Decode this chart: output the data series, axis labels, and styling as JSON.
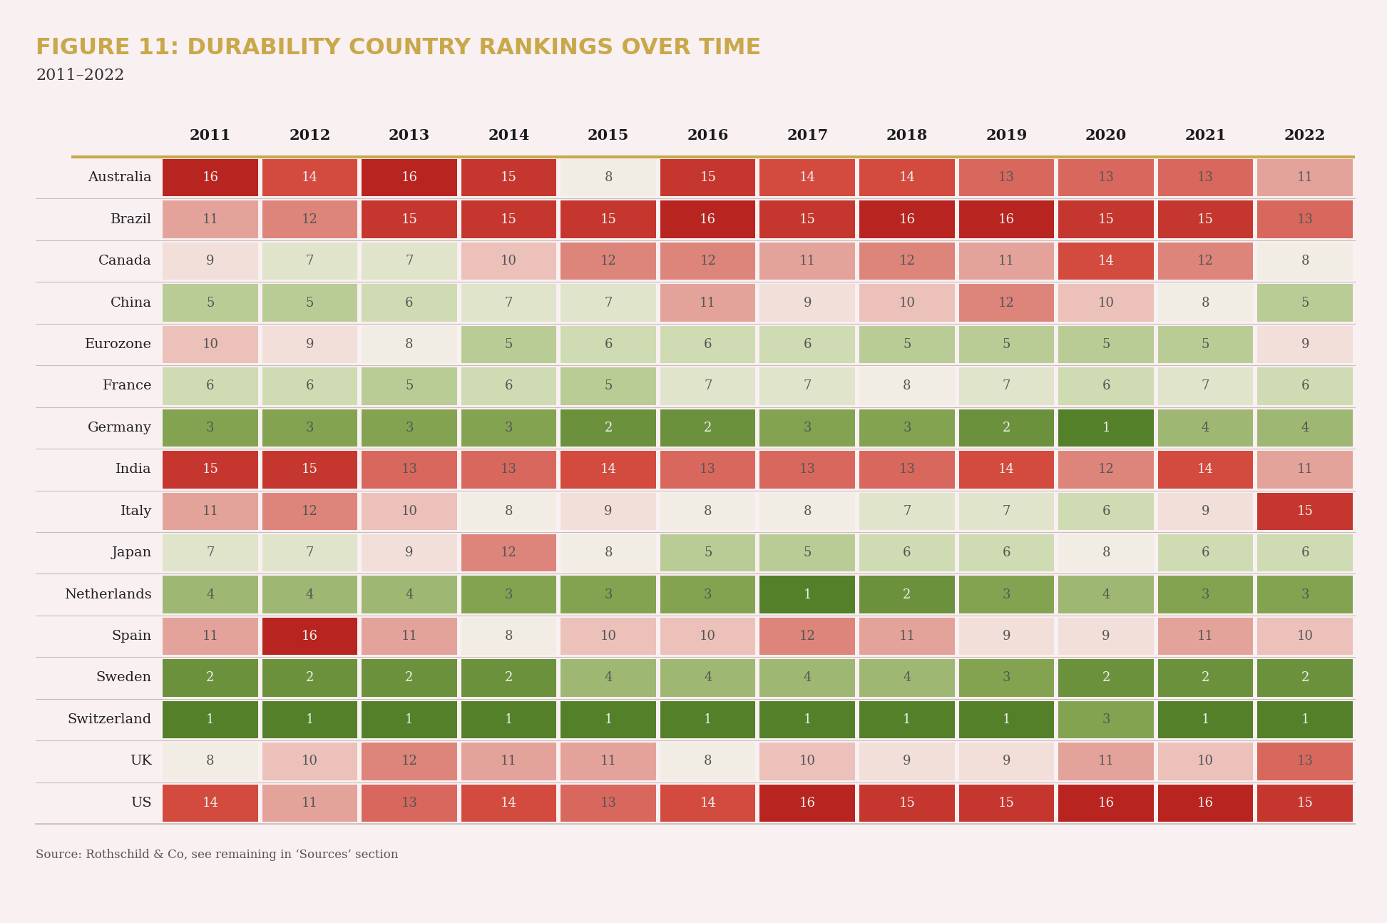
{
  "title": "FIGURE 11: DURABILITY COUNTRY RANKINGS OVER TIME",
  "subtitle": "2011–2022",
  "source": "Source: Rothschild & Co, see remaining in ‘Sources’ section",
  "years": [
    2011,
    2012,
    2013,
    2014,
    2015,
    2016,
    2017,
    2018,
    2019,
    2020,
    2021,
    2022
  ],
  "countries": [
    "Australia",
    "Brazil",
    "Canada",
    "China",
    "Eurozone",
    "France",
    "Germany",
    "India",
    "Italy",
    "Japan",
    "Netherlands",
    "Spain",
    "Sweden",
    "Switzerland",
    "UK",
    "US"
  ],
  "data": {
    "Australia": [
      16,
      14,
      16,
      15,
      8,
      15,
      14,
      14,
      13,
      13,
      13,
      11
    ],
    "Brazil": [
      11,
      12,
      15,
      15,
      15,
      16,
      15,
      16,
      16,
      15,
      15,
      13
    ],
    "Canada": [
      9,
      7,
      7,
      10,
      12,
      12,
      11,
      12,
      11,
      14,
      12,
      8
    ],
    "China": [
      5,
      5,
      6,
      7,
      7,
      11,
      9,
      10,
      12,
      10,
      8,
      5
    ],
    "Eurozone": [
      10,
      9,
      8,
      5,
      6,
      6,
      6,
      5,
      5,
      5,
      5,
      9
    ],
    "France": [
      6,
      6,
      5,
      6,
      5,
      7,
      7,
      8,
      7,
      6,
      7,
      6
    ],
    "Germany": [
      3,
      3,
      3,
      3,
      2,
      2,
      3,
      3,
      2,
      1,
      4,
      4
    ],
    "India": [
      15,
      15,
      13,
      13,
      14,
      13,
      13,
      13,
      14,
      12,
      14,
      11
    ],
    "Italy": [
      11,
      12,
      10,
      8,
      9,
      8,
      8,
      7,
      7,
      6,
      9,
      15
    ],
    "Japan": [
      7,
      7,
      9,
      12,
      8,
      5,
      5,
      6,
      6,
      8,
      6,
      6
    ],
    "Netherlands": [
      4,
      4,
      4,
      3,
      3,
      3,
      1,
      2,
      3,
      4,
      3,
      3
    ],
    "Spain": [
      11,
      16,
      11,
      8,
      10,
      10,
      12,
      11,
      9,
      9,
      11,
      10
    ],
    "Sweden": [
      2,
      2,
      2,
      2,
      4,
      4,
      4,
      4,
      3,
      2,
      2,
      2
    ],
    "Switzerland": [
      1,
      1,
      1,
      1,
      1,
      1,
      1,
      1,
      1,
      3,
      1,
      1
    ],
    "UK": [
      8,
      10,
      12,
      11,
      11,
      8,
      10,
      9,
      9,
      11,
      10,
      13
    ],
    "US": [
      14,
      11,
      13,
      14,
      13,
      14,
      16,
      15,
      15,
      16,
      16,
      15
    ]
  },
  "background_color": "#f9f0f2",
  "title_color": "#c8a84b",
  "subtitle_color": "#333333",
  "source_color": "#555555",
  "header_line_color": "#c8a84b",
  "row_line_color": "#ccbbbb",
  "color_stops": [
    [
      0.0,
      [
        0.33,
        0.5,
        0.16
      ]
    ],
    [
      0.125,
      [
        0.5,
        0.63,
        0.3
      ]
    ],
    [
      0.3,
      [
        0.78,
        0.84,
        0.65
      ]
    ],
    [
      0.47,
      [
        0.95,
        0.93,
        0.9
      ]
    ],
    [
      0.53,
      [
        0.95,
        0.88,
        0.86
      ]
    ],
    [
      0.7,
      [
        0.88,
        0.58,
        0.54
      ]
    ],
    [
      0.875,
      [
        0.82,
        0.28,
        0.23
      ]
    ],
    [
      1.0,
      [
        0.72,
        0.14,
        0.12
      ]
    ]
  ]
}
